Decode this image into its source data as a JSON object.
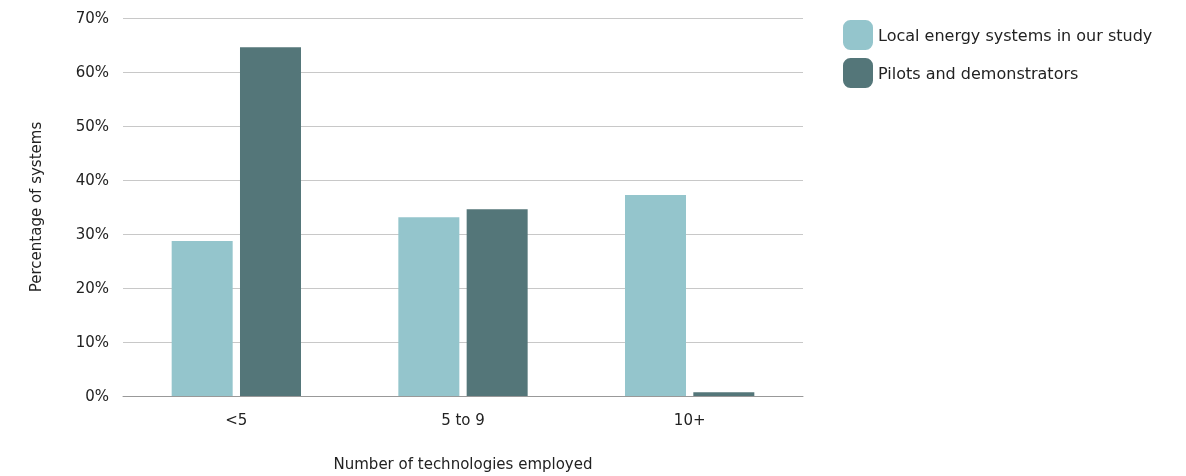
{
  "chart_data": {
    "type": "bar",
    "xlabel": "Number of technologies employed",
    "ylabel": "Percentage of systems",
    "categories": [
      "<5",
      "5 to 9",
      "10+"
    ],
    "series": [
      {
        "name": "Local energy systems in our study",
        "color": "#94c5cc",
        "values": [
          28.7,
          33.1,
          37.2
        ]
      },
      {
        "name": "Pilots and demonstrators",
        "color": "#547679",
        "values": [
          64.6,
          34.6,
          0.7
        ]
      }
    ],
    "ylim": [
      0,
      70
    ],
    "yticks": [
      {
        "value": 0,
        "label": "0%"
      },
      {
        "value": 10,
        "label": "10%"
      },
      {
        "value": 20,
        "label": "20%"
      },
      {
        "value": 30,
        "label": "30%"
      },
      {
        "value": 40,
        "label": "40%"
      },
      {
        "value": 50,
        "label": "50%"
      },
      {
        "value": 60,
        "label": "60%"
      },
      {
        "value": 70,
        "label": "70%"
      }
    ],
    "grid": "y",
    "legend": "top right"
  }
}
